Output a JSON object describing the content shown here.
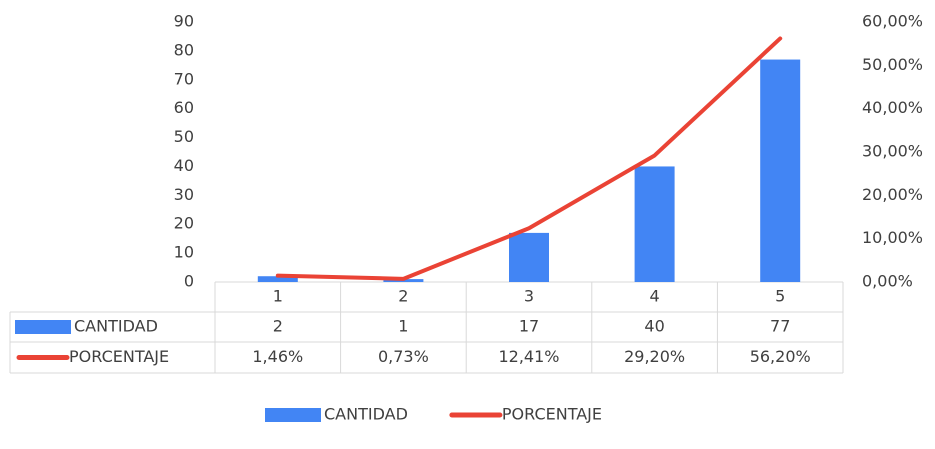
{
  "chart_data": {
    "type": "bar",
    "categories": [
      "1",
      "2",
      "3",
      "4",
      "5"
    ],
    "series": [
      {
        "name": "CANTIDAD",
        "type": "bar",
        "color": "#4285f4",
        "values": [
          2,
          1,
          17,
          40,
          77
        ]
      },
      {
        "name": "PORCENTAJE",
        "type": "line",
        "axis": "y2",
        "color": "#ea4335",
        "values": [
          1.46,
          0.73,
          12.41,
          29.2,
          56.2
        ],
        "value_labels": [
          "1,46%",
          "0,73%",
          "12,41%",
          "29,20%",
          "56,20%"
        ]
      }
    ],
    "ylim": [
      0,
      90
    ],
    "yticks": [
      0,
      10,
      20,
      30,
      40,
      50,
      60,
      70,
      80,
      90
    ],
    "y2lim": [
      0,
      60
    ],
    "y2ticks": [
      {
        "value": 0,
        "label": "0,00%"
      },
      {
        "value": 10,
        "label": "10,00%"
      },
      {
        "value": 20,
        "label": "20,00%"
      },
      {
        "value": 30,
        "label": "30,00%"
      },
      {
        "value": 40,
        "label": "40,00%"
      },
      {
        "value": 50,
        "label": "50,00%"
      },
      {
        "value": 60,
        "label": "60,00%"
      }
    ],
    "legend": "bottom",
    "data_table": true
  }
}
